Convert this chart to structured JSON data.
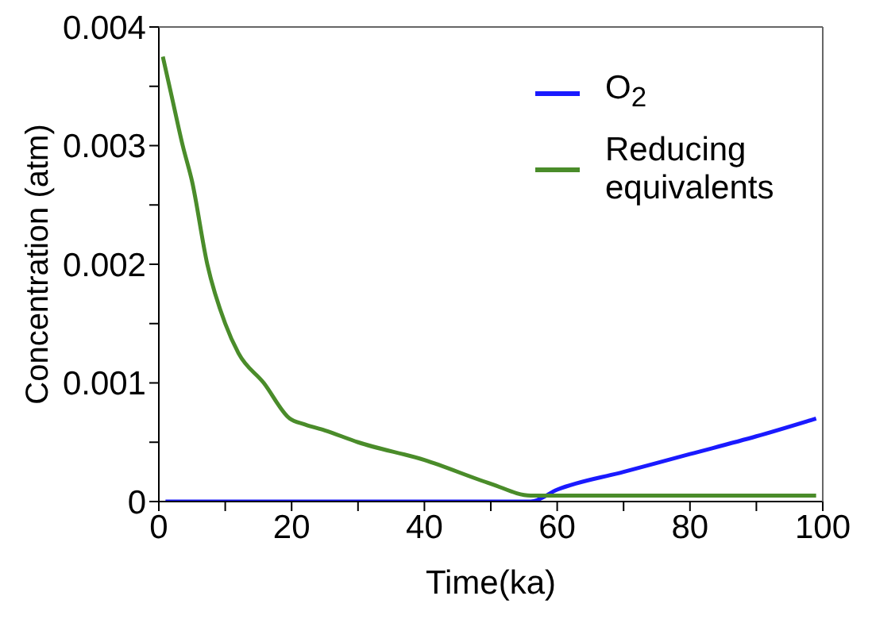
{
  "chart_data": {
    "type": "line",
    "xlabel": "Time(ka)",
    "ylabel": "Concentration (atm)",
    "xlim": [
      0,
      100
    ],
    "ylim": [
      0,
      0.004
    ],
    "xticks": [
      0,
      {
        "value": 10,
        "label": null
      },
      20,
      {
        "value": 30,
        "label": null
      },
      40,
      {
        "value": 50,
        "label": null
      },
      60,
      {
        "value": 70,
        "label": null
      },
      80,
      {
        "value": 90,
        "label": null
      },
      100
    ],
    "yticks": [
      0,
      {
        "value": 0.0005,
        "label": null
      },
      0.001,
      {
        "value": 0.0015,
        "label": null
      },
      0.002,
      {
        "value": 0.0025,
        "label": null
      },
      0.003,
      {
        "value": 0.0035,
        "label": null
      },
      0.004
    ],
    "legend": "top right",
    "marker": "none",
    "line_style": "solid",
    "series": [
      {
        "name": "O$_{2}$",
        "color": "#1a1aff",
        "x": [
          1,
          10,
          20,
          30,
          40,
          50,
          55,
          56,
          60,
          70,
          80,
          90,
          99
        ],
        "values": [
          0,
          0,
          0,
          0,
          0,
          0,
          0,
          0,
          0.0001,
          0.00025,
          0.0004,
          0.00055,
          0.0007
        ]
      },
      {
        "name": "Reducing equivalents",
        "color": "#4a8c2a",
        "x": [
          0.6,
          2,
          3.6,
          5,
          7.3,
          10,
          12,
          15.8,
          19.7,
          22,
          25,
          30,
          40,
          50,
          56,
          60,
          70,
          80,
          90,
          99
        ],
        "values": [
          0.00375,
          0.0034,
          0.003,
          0.0027,
          0.002,
          0.0015,
          0.00125,
          0.001,
          0.0007,
          0.00065,
          0.0006,
          0.0005,
          0.00035,
          0.00015,
          5e-05,
          5e-05,
          5e-05,
          5e-05,
          5e-05,
          5e-05
        ]
      }
    ]
  }
}
